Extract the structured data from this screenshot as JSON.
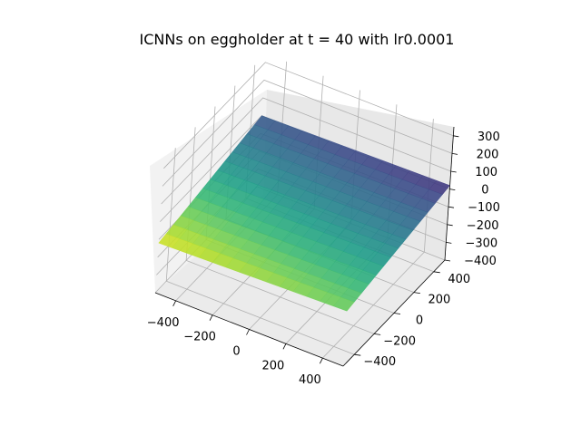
{
  "chart_data": {
    "type": "surface3d",
    "title": "ICNNs on eggholder at t = 40 with lr0.0001",
    "xlabel": "",
    "ylabel": "",
    "zlabel": "",
    "x_ticks": [
      "−400",
      "−200",
      "0",
      "200",
      "400"
    ],
    "y_ticks": [
      "−400",
      "−200",
      "0",
      "200",
      "400"
    ],
    "z_ticks": [
      "−400",
      "−300",
      "−200",
      "−100",
      "0",
      "100",
      "200",
      "300"
    ],
    "xlim": [
      -512,
      512
    ],
    "ylim": [
      -512,
      512
    ],
    "zlim": [
      -400,
      350
    ],
    "colormap": "viridis",
    "grid": true,
    "surface": {
      "description_free": true,
      "corner_values": {
        "x_min_y_min": -120,
        "x_min_y_max": 0,
        "x_max_y_min": -90,
        "x_max_y_max": 20
      }
    }
  }
}
